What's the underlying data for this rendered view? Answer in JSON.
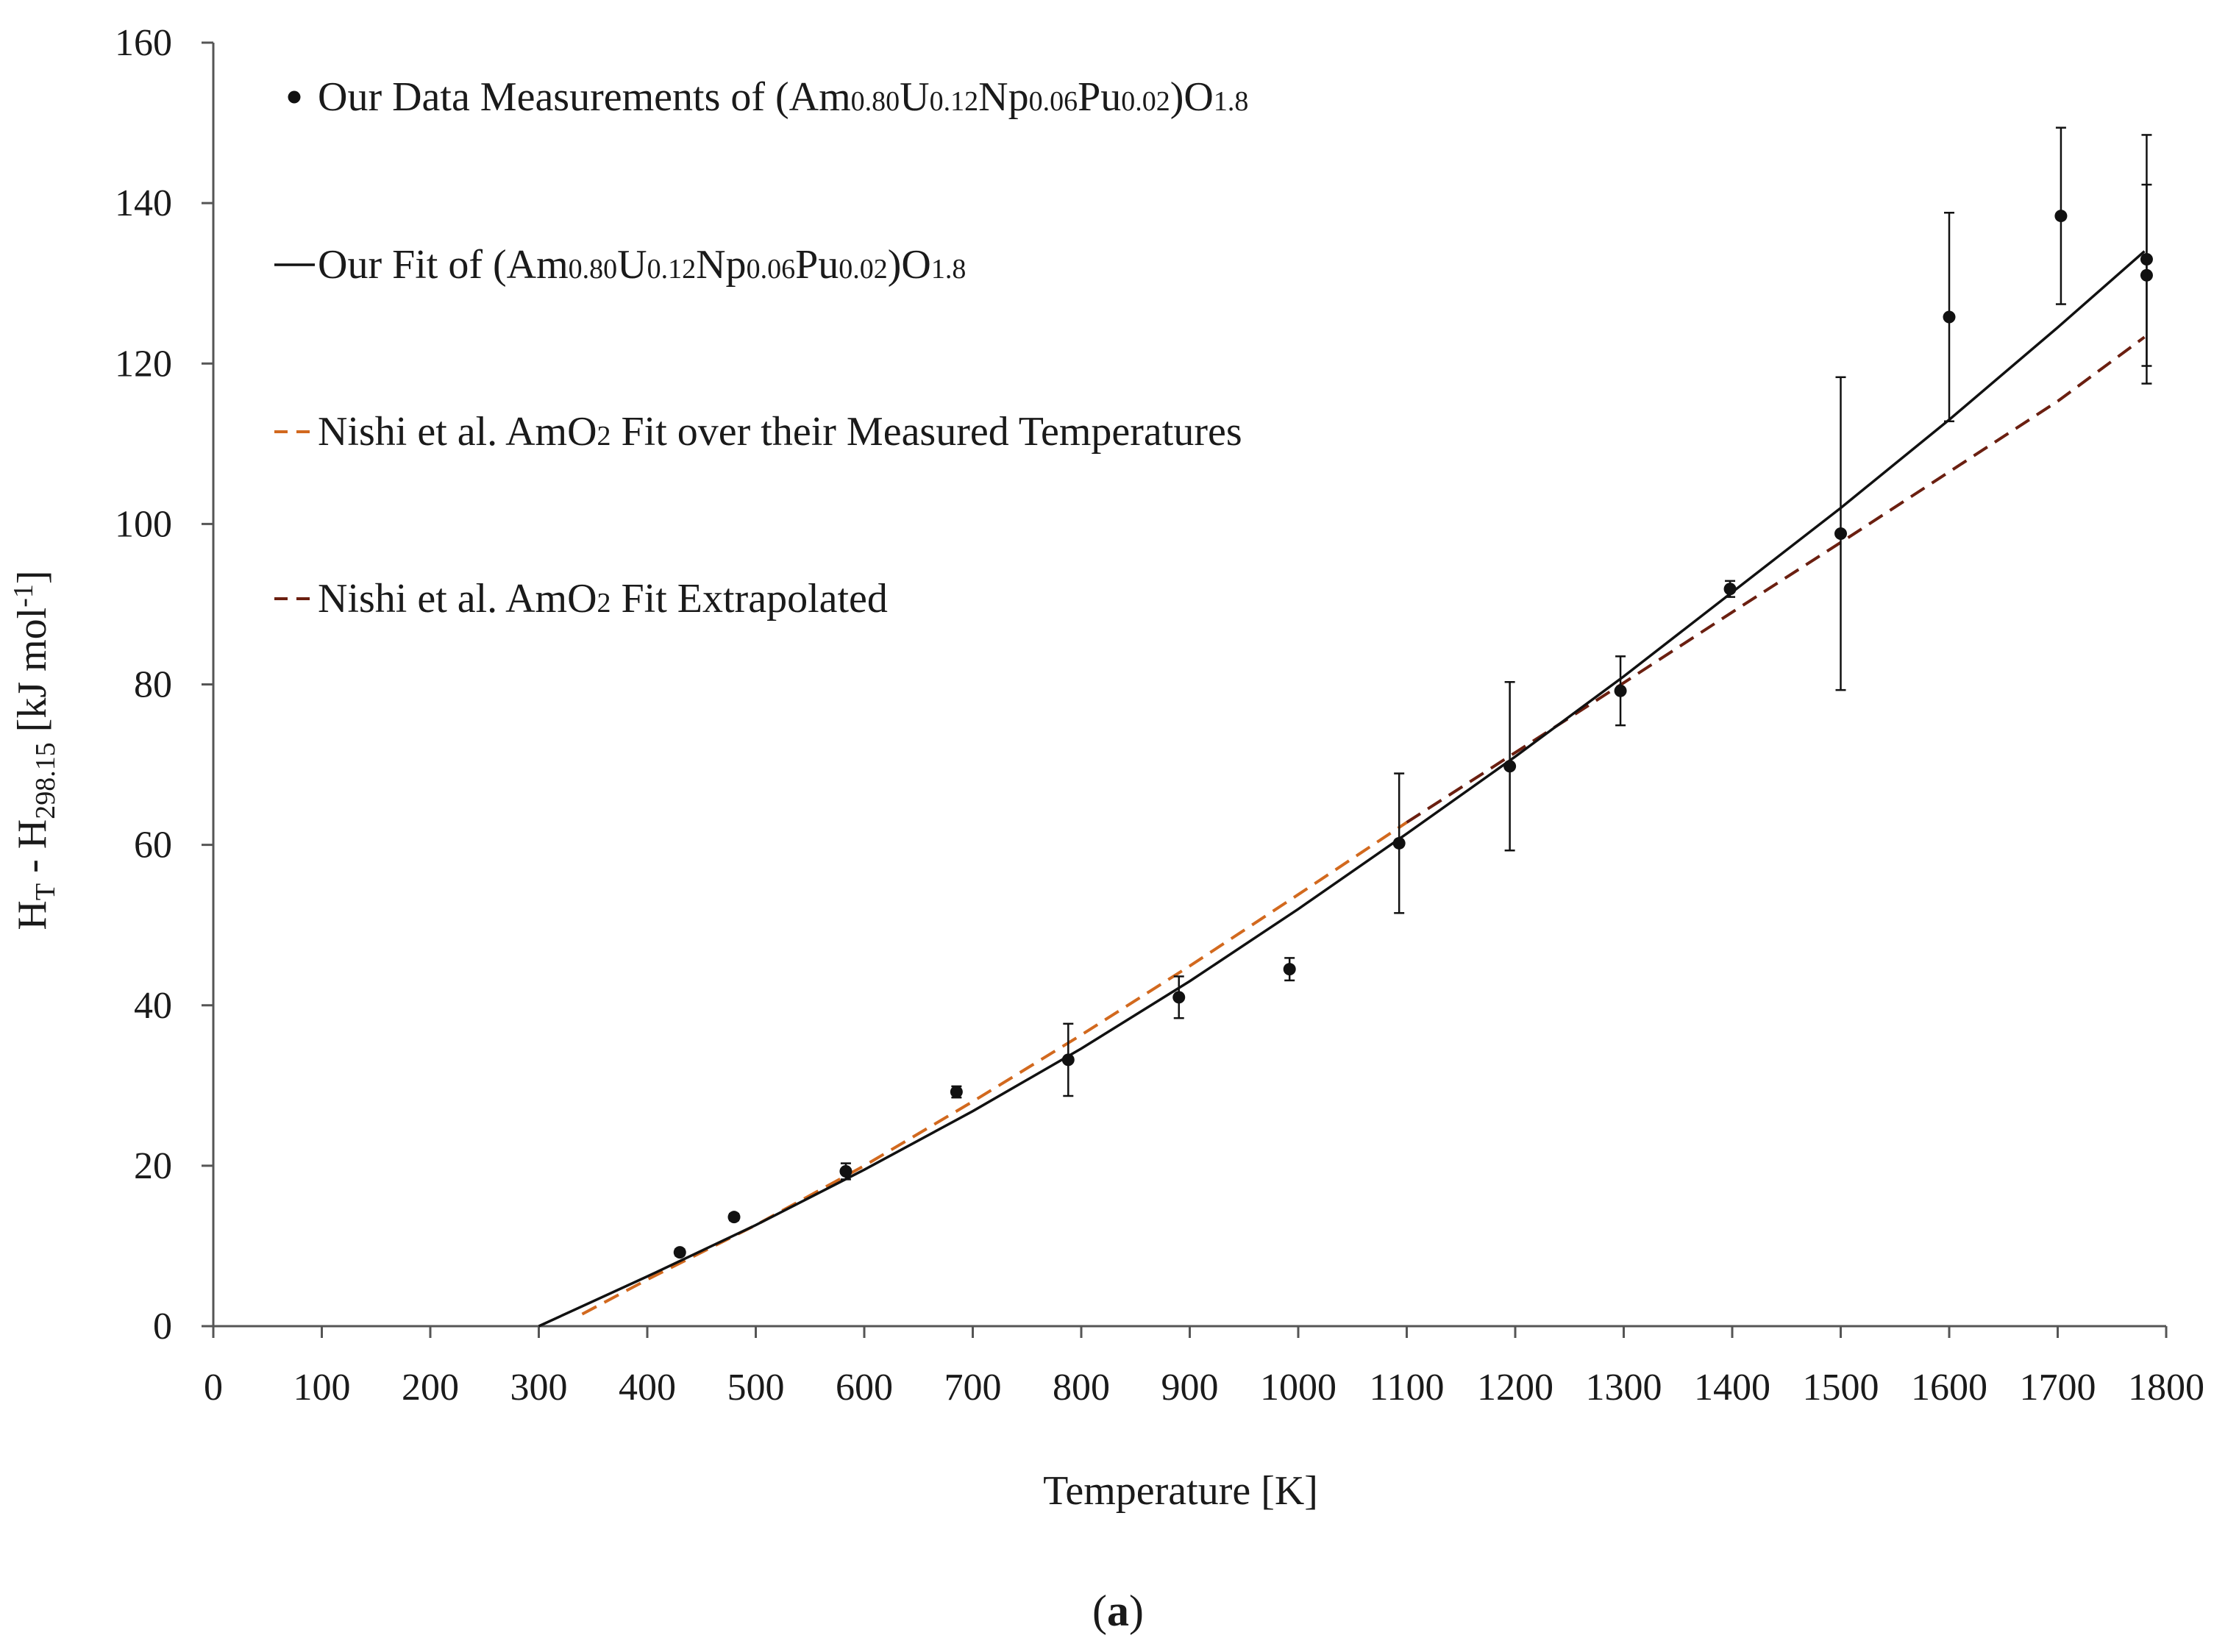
{
  "chart_data": {
    "type": "scatter",
    "xlabel": "Temperature [K]",
    "ylabel": {
      "main": "H",
      "sub1": "T",
      "mid": " - H",
      "sub2": "298.15",
      "unit": "   [kJ mol",
      "sup": "-1",
      "close": "]"
    },
    "panel_label": {
      "open": "(",
      "letter": "a",
      "close": ")"
    },
    "xlim": [
      0,
      1800
    ],
    "ylim": [
      0,
      160
    ],
    "x_ticks": [
      0,
      100,
      200,
      300,
      400,
      500,
      600,
      700,
      800,
      900,
      1000,
      1100,
      1200,
      1300,
      1400,
      1500,
      1600,
      1700,
      1800
    ],
    "y_ticks": [
      0,
      20,
      40,
      60,
      80,
      100,
      120,
      140,
      160
    ],
    "grid": false,
    "legend_position": "top-left",
    "legend": [
      {
        "marker": "dot",
        "color": "#111111",
        "parts": [
          {
            "t": "Our Data Measurements of (Am",
            "s": false
          },
          {
            "t": "0.80",
            "s": true
          },
          {
            "t": "U",
            "s": false
          },
          {
            "t": "0.12",
            "s": true
          },
          {
            "t": "Np",
            "s": false
          },
          {
            "t": "0.06",
            "s": true
          },
          {
            "t": "Pu",
            "s": false
          },
          {
            "t": "0.02",
            "s": true
          },
          {
            "t": ")O",
            "s": false
          },
          {
            "t": "1.8",
            "s": true
          }
        ]
      },
      {
        "marker": "solid",
        "color": "#111111",
        "parts": [
          {
            "t": "Our Fit of (Am",
            "s": false
          },
          {
            "t": "0.80",
            "s": true
          },
          {
            "t": "U",
            "s": false
          },
          {
            "t": "0.12",
            "s": true
          },
          {
            "t": "Np",
            "s": false
          },
          {
            "t": "0.06",
            "s": true
          },
          {
            "t": "Pu",
            "s": false
          },
          {
            "t": "0.02",
            "s": true
          },
          {
            "t": ")O",
            "s": false
          },
          {
            "t": "1.8",
            "s": true
          }
        ]
      },
      {
        "marker": "dashed",
        "color": "#d2691e",
        "parts": [
          {
            "t": "Nishi et al. AmO",
            "s": false
          },
          {
            "t": "2",
            "s": true
          },
          {
            "t": " Fit over their Measured Temperatures",
            "s": false
          }
        ]
      },
      {
        "marker": "dashed",
        "color": "#6b1f10",
        "parts": [
          {
            "t": "Nishi et al. AmO",
            "s": false
          },
          {
            "t": "2",
            "s": true
          },
          {
            "t": " Fit Extrapolated",
            "s": false
          }
        ]
      }
    ],
    "measurements": [
      {
        "x": 430,
        "y": 9.2,
        "err": 0.4
      },
      {
        "x": 480,
        "y": 13.6,
        "err": 0.4
      },
      {
        "x": 583,
        "y": 19.3,
        "err": 1.0
      },
      {
        "x": 685,
        "y": 29.2,
        "err": 0.7
      },
      {
        "x": 788,
        "y": 33.2,
        "err": 4.5
      },
      {
        "x": 890,
        "y": 41.0,
        "err": 2.6
      },
      {
        "x": 992,
        "y": 44.5,
        "err": 1.4
      },
      {
        "x": 1093,
        "y": 60.2,
        "err": 8.7
      },
      {
        "x": 1195,
        "y": 69.8,
        "err": 10.5
      },
      {
        "x": 1297,
        "y": 79.2,
        "err": 4.3
      },
      {
        "x": 1398,
        "y": 91.9,
        "err": 1.0
      },
      {
        "x": 1500,
        "y": 98.8,
        "err": 19.5
      },
      {
        "x": 1600,
        "y": 125.8,
        "err": 13.0
      },
      {
        "x": 1703,
        "y": 138.4,
        "err": 11.0
      },
      {
        "x": 1782,
        "y": 131.0,
        "err": 11.3
      },
      {
        "x": 1782,
        "y": 133.0,
        "err": 15.5
      }
    ],
    "our_fit": {
      "x": [
        300,
        400,
        500,
        600,
        700,
        800,
        900,
        1000,
        1100,
        1200,
        1300,
        1400,
        1500,
        1600,
        1700,
        1780
      ],
      "y": [
        0,
        6.2,
        12.6,
        19.5,
        26.8,
        34.6,
        43.0,
        52.0,
        61.4,
        71.0,
        81.0,
        91.5,
        102.0,
        113.0,
        124.5,
        134.0
      ]
    },
    "nishi_measured_fit": {
      "x": [
        340,
        400,
        500,
        600,
        700,
        800,
        900,
        1000,
        1100
      ],
      "y": [
        1.5,
        5.8,
        12.6,
        20.0,
        28.0,
        36.3,
        44.9,
        53.8,
        62.8
      ]
    },
    "nishi_extrapolated_fit": {
      "x": [
        1100,
        1200,
        1300,
        1400,
        1500,
        1600,
        1700,
        1780
      ],
      "y": [
        62.8,
        71.5,
        80.2,
        89.0,
        97.7,
        106.5,
        115.3,
        123.3
      ]
    }
  }
}
